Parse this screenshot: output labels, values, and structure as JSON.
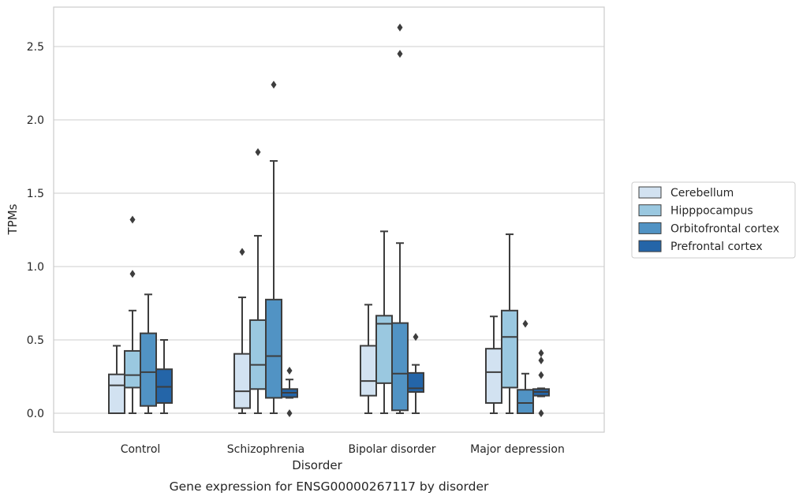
{
  "chart_data": {
    "type": "box",
    "title": "",
    "caption": "Gene expression for ENSG00000267117 by disorder",
    "xlabel": "Disorder",
    "ylabel": "TPMs",
    "ylim": [
      -0.13,
      2.77
    ],
    "yticks": [
      0.0,
      0.5,
      1.0,
      1.5,
      2.0,
      2.5
    ],
    "ytick_labels": [
      "0.0",
      "0.5",
      "1.0",
      "1.5",
      "2.0",
      "2.5"
    ],
    "grid": "horizontal",
    "legend_position": "right",
    "categories": [
      "Control",
      "Schizophrenia",
      "Bipolar disorder",
      "Major depression"
    ],
    "series": [
      {
        "name": "Cerebellum",
        "color": "#d2e2f1",
        "boxes": [
          {
            "whisker_low": 0.0,
            "q1": 0.0,
            "median": 0.19,
            "q3": 0.265,
            "whisker_high": 0.46,
            "outliers": []
          },
          {
            "whisker_low": 0.0,
            "q1": 0.035,
            "median": 0.15,
            "q3": 0.405,
            "whisker_high": 0.79,
            "outliers": [
              1.1
            ]
          },
          {
            "whisker_low": 0.0,
            "q1": 0.12,
            "median": 0.22,
            "q3": 0.46,
            "whisker_high": 0.74,
            "outliers": []
          },
          {
            "whisker_low": 0.0,
            "q1": 0.07,
            "median": 0.28,
            "q3": 0.44,
            "whisker_high": 0.66,
            "outliers": []
          }
        ]
      },
      {
        "name": "Hipppocampus",
        "color": "#9ac8e0",
        "boxes": [
          {
            "whisker_low": 0.0,
            "q1": 0.175,
            "median": 0.26,
            "q3": 0.425,
            "whisker_high": 0.7,
            "outliers": [
              0.95,
              1.32
            ]
          },
          {
            "whisker_low": 0.0,
            "q1": 0.165,
            "median": 0.33,
            "q3": 0.635,
            "whisker_high": 1.21,
            "outliers": [
              1.78
            ]
          },
          {
            "whisker_low": 0.0,
            "q1": 0.205,
            "median": 0.61,
            "q3": 0.665,
            "whisker_high": 1.24,
            "outliers": []
          },
          {
            "whisker_low": 0.0,
            "q1": 0.175,
            "median": 0.52,
            "q3": 0.7,
            "whisker_high": 1.22,
            "outliers": []
          }
        ]
      },
      {
        "name": "Orbitofrontal cortex",
        "color": "#5193c4",
        "boxes": [
          {
            "whisker_low": 0.0,
            "q1": 0.05,
            "median": 0.28,
            "q3": 0.545,
            "whisker_high": 0.81,
            "outliers": []
          },
          {
            "whisker_low": 0.0,
            "q1": 0.105,
            "median": 0.39,
            "q3": 0.775,
            "whisker_high": 1.72,
            "outliers": [
              2.24
            ]
          },
          {
            "whisker_low": 0.0,
            "q1": 0.02,
            "median": 0.27,
            "q3": 0.615,
            "whisker_high": 1.16,
            "outliers": [
              2.45,
              2.63
            ]
          },
          {
            "whisker_low": 0.0,
            "q1": 0.0,
            "median": 0.07,
            "q3": 0.16,
            "whisker_high": 0.27,
            "outliers": [
              0.61
            ]
          }
        ]
      },
      {
        "name": "Prefrontal cortex",
        "color": "#2465a8",
        "boxes": [
          {
            "whisker_low": 0.0,
            "q1": 0.07,
            "median": 0.18,
            "q3": 0.3,
            "whisker_high": 0.5,
            "outliers": []
          },
          {
            "whisker_low": 0.105,
            "q1": 0.11,
            "median": 0.14,
            "q3": 0.165,
            "whisker_high": 0.23,
            "outliers": [
              0.0,
              0.29
            ]
          },
          {
            "whisker_low": 0.0,
            "q1": 0.145,
            "median": 0.17,
            "q3": 0.275,
            "whisker_high": 0.33,
            "outliers": [
              0.52
            ]
          },
          {
            "whisker_low": 0.115,
            "q1": 0.12,
            "median": 0.145,
            "q3": 0.165,
            "whisker_high": 0.17,
            "outliers": [
              0.0,
              0.26,
              0.36,
              0.41
            ]
          }
        ]
      }
    ]
  }
}
